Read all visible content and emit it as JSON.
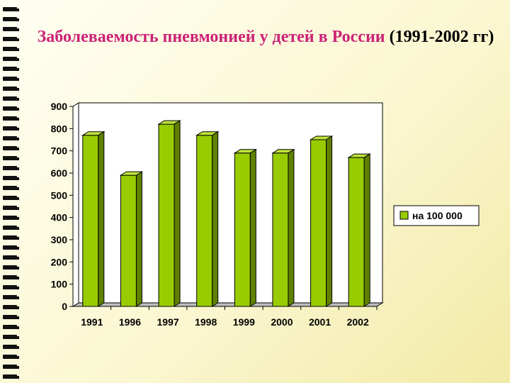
{
  "slide": {
    "title_colored": "Заболеваемость пневмонией у детей в России",
    "title_rest": " (1991-2002 гг)",
    "title_color": "#cc2277",
    "background": "#fbf7d2"
  },
  "chart_data": {
    "type": "bar",
    "style": "3d",
    "categories": [
      "1991",
      "1996",
      "1997",
      "1998",
      "1999",
      "2000",
      "2001",
      "2002"
    ],
    "series": [
      {
        "name": "на 100 000",
        "values": [
          770,
          590,
          820,
          770,
          690,
          690,
          750,
          670
        ],
        "color": "#99cc00"
      }
    ],
    "y_ticks": [
      "0",
      "100",
      "200",
      "300",
      "400",
      "500",
      "600",
      "700",
      "800",
      "900"
    ],
    "ylim": [
      0,
      900
    ],
    "grid": false,
    "legend_position": "right"
  }
}
